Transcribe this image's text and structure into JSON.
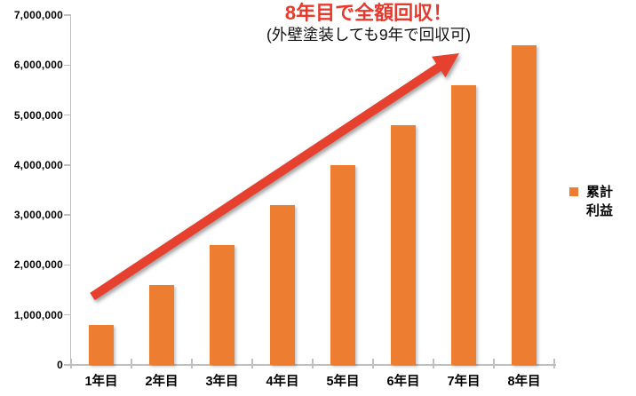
{
  "chart_data": {
    "type": "bar",
    "title": "8年目で全額回収！",
    "subtitle": "(外壁塗装しても9年で回収可)",
    "categories": [
      "1年目",
      "2年目",
      "3年目",
      "4年目",
      "5年目",
      "6年目",
      "7年目",
      "8年目"
    ],
    "series": [
      {
        "name": "累計利益",
        "values": [
          800000,
          1600000,
          2400000,
          3200000,
          4000000,
          4800000,
          5600000,
          6400000
        ]
      }
    ],
    "ylim": [
      0,
      7000000
    ],
    "ytick_step": 1000000,
    "ytick_labels": [
      "0",
      "1,000,000",
      "2,000,000",
      "3,000,000",
      "4,000,000",
      "5,000,000",
      "6,000,000",
      "7,000,000"
    ],
    "xlabel": "",
    "ylabel": "",
    "grid": false,
    "legend": {
      "position": "right",
      "lines": [
        "累計",
        "利益"
      ]
    },
    "annotation_arrow": {
      "type": "arrow",
      "direction": "up-right",
      "meaning": "rising cumulative profit toward full payback"
    }
  },
  "colors": {
    "bar": "#ED7D31",
    "title_red": "#E8392C",
    "arrow_red": "#E6402F",
    "axis": "#BFBFBF",
    "text": "#000000"
  }
}
